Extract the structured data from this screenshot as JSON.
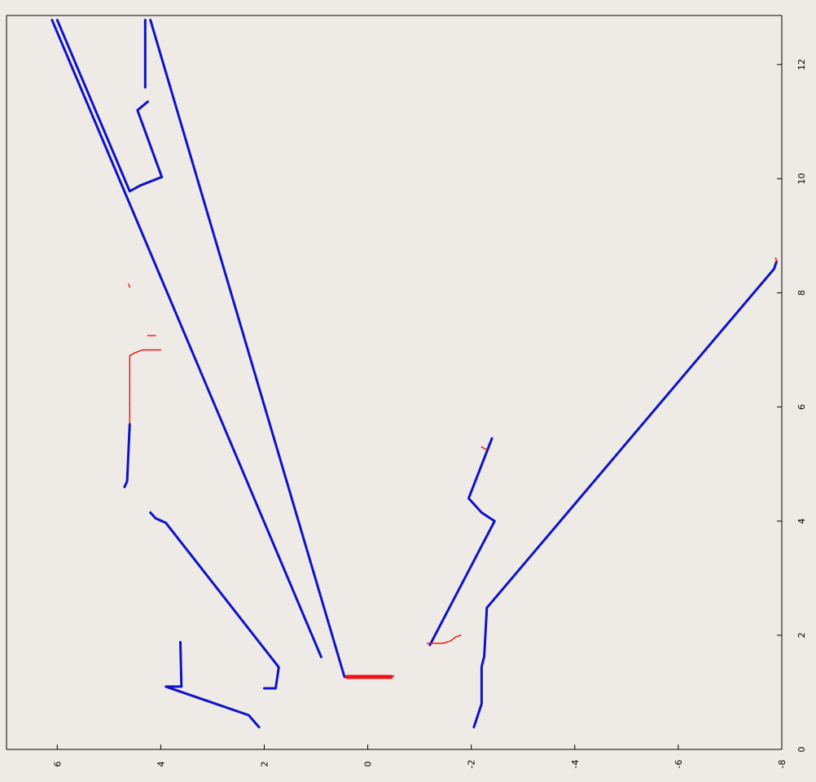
{
  "chart_data": {
    "type": "line",
    "title": "",
    "xlabel": "",
    "ylabel": "",
    "x_axis": {
      "position": "bottom",
      "direction": "reversed",
      "range": [
        6.98,
        -8.0
      ],
      "ticks": [
        "6",
        "4",
        "2",
        "0",
        "-2",
        "-4",
        "-6",
        "-8"
      ],
      "tick_values": [
        6,
        4,
        2,
        0,
        -2,
        -4,
        -6,
        -8
      ]
    },
    "y_axis": {
      "position": "right",
      "range": [
        0,
        12.86
      ],
      "ticks": [
        "0",
        "2",
        "4",
        "6",
        "8",
        "10",
        "12"
      ],
      "tick_values": [
        0,
        2,
        4,
        6,
        8,
        10,
        12
      ]
    },
    "grid": false,
    "legend": "none",
    "colors": {
      "background": "#eeebe7",
      "walls": "#0f12c8",
      "laser": "#ee1111"
    },
    "series": [
      {
        "style": "walls",
        "segments": [
          [
            [
              2.1,
              0.39
            ],
            [
              2.3,
              0.6
            ],
            [
              3.9,
              1.1
            ],
            [
              3.6,
              1.1
            ],
            [
              3.62,
              1.88
            ]
          ],
          [
            [
              2.0,
              1.07
            ],
            [
              1.78,
              1.07
            ],
            [
              1.72,
              1.44
            ],
            [
              3.9,
              3.97
            ],
            [
              4.1,
              4.05
            ],
            [
              4.2,
              4.15
            ]
          ],
          [
            [
              0.9,
              1.62
            ],
            [
              6.1,
              12.78
            ]
          ],
          [
            [
              6.0,
              12.78
            ],
            [
              4.6,
              9.78
            ],
            [
              4.4,
              9.88
            ],
            [
              3.98,
              10.03
            ],
            [
              4.45,
              11.2
            ],
            [
              4.25,
              11.35
            ]
          ],
          [
            [
              4.3,
              11.6
            ],
            [
              4.3,
              12.2
            ],
            [
              4.3,
              12.78
            ]
          ],
          [
            [
              4.2,
              12.78
            ],
            [
              0.45,
              1.27
            ]
          ],
          [
            [
              4.7,
              4.6
            ],
            [
              4.65,
              4.7
            ],
            [
              4.6,
              5.7
            ]
          ],
          [
            [
              -1.2,
              1.83
            ],
            [
              -2.45,
              4.0
            ],
            [
              -2.2,
              4.15
            ],
            [
              -1.95,
              4.4
            ],
            [
              -2.4,
              5.45
            ]
          ],
          [
            [
              -2.05,
              0.39
            ],
            [
              -2.2,
              0.8
            ],
            [
              -2.2,
              1.45
            ],
            [
              -2.25,
              1.63
            ],
            [
              -2.3,
              2.48
            ],
            [
              -7.85,
              8.42
            ],
            [
              -7.9,
              8.55
            ]
          ]
        ]
      },
      {
        "style": "laser",
        "segments": [
          [
            [
              0.4,
              1.27
            ],
            [
              -0.45,
              1.27
            ]
          ],
          [
            [
              -0.45,
              1.27
            ],
            [
              -0.5,
              1.29
            ]
          ],
          [
            [
              -1.15,
              1.86
            ],
            [
              -1.45,
              1.86
            ],
            [
              -1.6,
              1.9
            ],
            [
              -1.7,
              1.97
            ],
            [
              -1.8,
              2.0
            ]
          ],
          [
            [
              4.6,
              5.7
            ],
            [
              4.6,
              6.9
            ],
            [
              4.5,
              6.95
            ],
            [
              4.35,
              7.0
            ],
            [
              4.0,
              7.0
            ]
          ],
          [
            [
              4.25,
              7.25
            ],
            [
              4.1,
              7.25
            ]
          ],
          [
            [
              4.6,
              8.1
            ],
            [
              4.62,
              8.15
            ]
          ],
          [
            [
              -2.2,
              5.3
            ],
            [
              -2.3,
              5.25
            ]
          ],
          [
            [
              -7.9,
              8.55
            ],
            [
              -7.88,
              8.62
            ]
          ]
        ]
      }
    ]
  }
}
